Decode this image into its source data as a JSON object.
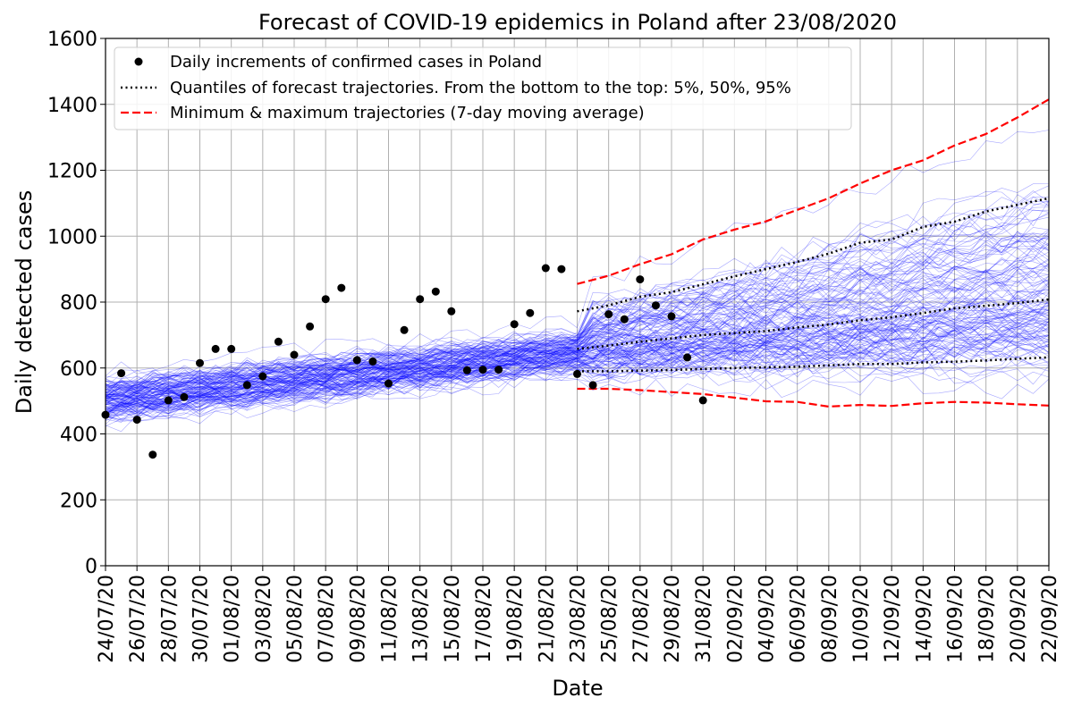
{
  "chart_data": {
    "type": "line",
    "title": "Forecast of COVID-19 epidemics in Poland after 23/08/2020",
    "xlabel": "Date",
    "ylabel": "Daily detected cases",
    "ylim": [
      0,
      1600
    ],
    "yticks": [
      0,
      200,
      400,
      600,
      800,
      1000,
      1200,
      1400,
      1600
    ],
    "xlim": [
      "24/07/20",
      "22/09/20"
    ],
    "xticks": [
      "24/07/20",
      "26/07/20",
      "28/07/20",
      "30/07/20",
      "01/08/20",
      "03/08/20",
      "05/08/20",
      "07/08/20",
      "09/08/20",
      "11/08/20",
      "13/08/20",
      "15/08/20",
      "17/08/20",
      "19/08/20",
      "21/08/20",
      "23/08/20",
      "25/08/20",
      "27/08/20",
      "29/08/20",
      "31/08/20",
      "02/09/20",
      "04/09/20",
      "06/09/20",
      "08/09/20",
      "10/09/20",
      "12/09/20",
      "14/09/20",
      "16/09/20",
      "18/09/20",
      "20/09/20",
      "22/09/20"
    ],
    "grid": true,
    "legend_position": "top-left",
    "legend": [
      {
        "label": "Daily increments of confirmed cases in Poland",
        "style": "marker"
      },
      {
        "label": "Quantiles of forecast trajectories. From the bottom to the top: 5%, 50%, 95%",
        "style": "dotted"
      },
      {
        "label": "Minimum & maximum trajectories (7-day moving average)",
        "style": "dashed"
      }
    ],
    "colors": {
      "trajectories": "#0000ff",
      "quantiles": "#000000",
      "minmax": "#ff0000",
      "observed": "#000000",
      "grid": "#b0b0b0"
    },
    "observed": {
      "name": "Daily increments of confirmed cases in Poland",
      "x": [
        "24/07/20",
        "25/07/20",
        "26/07/20",
        "27/07/20",
        "28/07/20",
        "29/07/20",
        "30/07/20",
        "31/07/20",
        "01/08/20",
        "02/08/20",
        "03/08/20",
        "04/08/20",
        "05/08/20",
        "06/08/20",
        "07/08/20",
        "08/08/20",
        "09/08/20",
        "10/08/20",
        "11/08/20",
        "12/08/20",
        "13/08/20",
        "14/08/20",
        "15/08/20",
        "16/08/20",
        "17/08/20",
        "18/08/20",
        "19/08/20",
        "20/08/20",
        "21/08/20",
        "22/08/20",
        "23/08/20",
        "24/08/20",
        "25/08/20",
        "26/08/20",
        "27/08/20",
        "28/08/20",
        "29/08/20",
        "30/08/20",
        "31/08/20"
      ],
      "y": [
        458,
        584,
        443,
        337,
        502,
        512,
        615,
        658,
        658,
        548,
        575,
        680,
        640,
        726,
        809,
        843,
        624,
        620,
        553,
        715,
        809,
        832,
        772,
        593,
        595,
        595,
        733,
        767,
        903,
        900,
        582,
        548,
        763,
        748,
        869,
        790,
        757,
        632,
        502
      ]
    },
    "quantiles": {
      "x": [
        "23/08/20",
        "25/08/20",
        "27/08/20",
        "29/08/20",
        "31/08/20",
        "02/09/20",
        "04/09/20",
        "06/09/20",
        "08/09/20",
        "10/09/20",
        "12/09/20",
        "14/09/20",
        "16/09/20",
        "18/09/20",
        "20/09/20",
        "22/09/20"
      ],
      "q05": [
        590,
        590,
        592,
        594,
        597,
        600,
        602,
        604,
        608,
        612,
        612,
        617,
        619,
        623,
        628,
        632
      ],
      "q50": [
        658,
        668,
        680,
        690,
        700,
        706,
        712,
        723,
        732,
        745,
        754,
        767,
        781,
        789,
        797,
        808
      ],
      "q95": [
        772,
        790,
        816,
        830,
        854,
        878,
        900,
        922,
        947,
        980,
        990,
        1028,
        1044,
        1075,
        1095,
        1115
      ]
    },
    "minmax": {
      "x": [
        "23/08/20",
        "25/08/20",
        "27/08/20",
        "29/08/20",
        "31/08/20",
        "02/09/20",
        "04/09/20",
        "06/09/20",
        "08/09/20",
        "10/09/20",
        "12/09/20",
        "14/09/20",
        "16/09/20",
        "18/09/20",
        "20/09/20",
        "22/09/20"
      ],
      "min": [
        537,
        537,
        533,
        527,
        521,
        510,
        499,
        497,
        483,
        488,
        485,
        493,
        497,
        495,
        490,
        486
      ],
      "max": [
        855,
        880,
        915,
        945,
        990,
        1020,
        1045,
        1080,
        1115,
        1160,
        1200,
        1230,
        1275,
        1310,
        1360,
        1415
      ]
    }
  }
}
